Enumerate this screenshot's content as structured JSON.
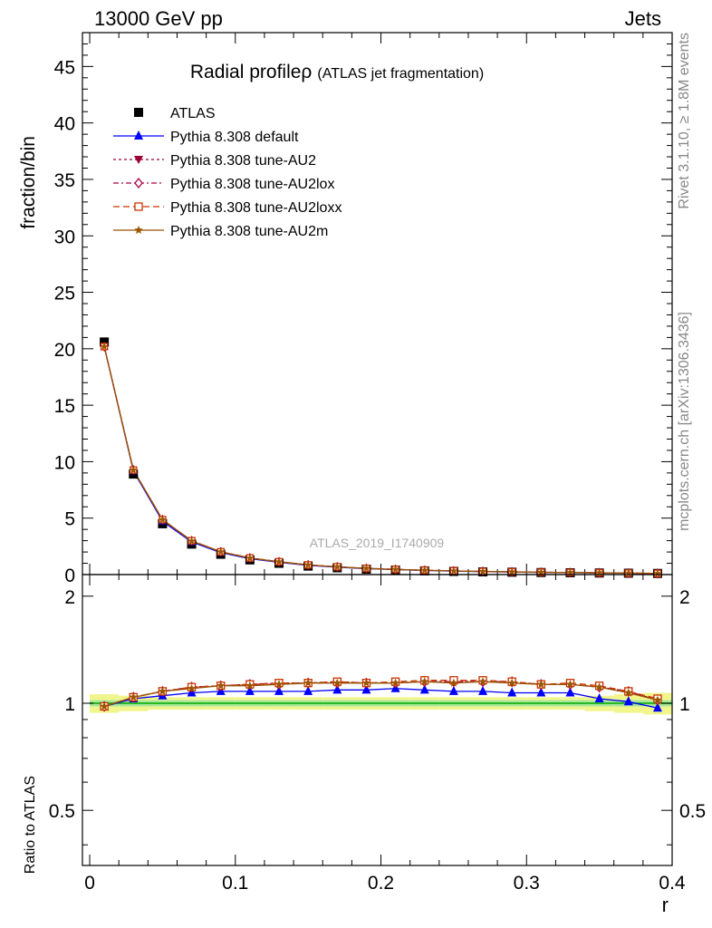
{
  "chart_data": {
    "type": "line",
    "header_left": "13000 GeV pp",
    "header_right": "Jets",
    "title_main": "Radial profile",
    "title_symbol": "ρ",
    "title_sub": "(ATLAS jet fragmentation)",
    "ylabel": "fraction/bin",
    "ratio_ylabel": "Ratio to ATLAS",
    "xlabel": "r",
    "watermark": "ATLAS_2019_I1740909",
    "side_text_1": "Rivet 3.1.10, ≥ 1.8M events",
    "side_text_2": "mcplots.cern.ch [arXiv:1306.3436]",
    "xlim": [
      -0.005,
      0.4
    ],
    "ylim": [
      0,
      48
    ],
    "ratio_ylim": [
      0.35,
      2.3
    ],
    "x_ticks": [
      "0",
      "0.1",
      "0.2",
      "0.3",
      "0.4"
    ],
    "y_ticks": [
      "0",
      "5",
      "10",
      "15",
      "20",
      "25",
      "30",
      "35",
      "40",
      "45"
    ],
    "ratio_y_ticks": [
      "0.5",
      "1",
      "2"
    ],
    "x": [
      0.01,
      0.03,
      0.05,
      0.07,
      0.09,
      0.11,
      0.13,
      0.15,
      0.17,
      0.19,
      0.21,
      0.23,
      0.25,
      0.27,
      0.29,
      0.31,
      0.33,
      0.35,
      0.37,
      0.39
    ],
    "data": {
      "name": "ATLAS",
      "values": [
        20.6,
        8.9,
        4.5,
        2.7,
        1.8,
        1.3,
        1.0,
        0.75,
        0.6,
        0.48,
        0.4,
        0.33,
        0.28,
        0.24,
        0.21,
        0.18,
        0.16,
        0.14,
        0.12,
        0.1
      ]
    },
    "series": [
      {
        "name": "Pythia 8.308 default",
        "color": "#0000ff",
        "marker": "triangle-up",
        "dash": "solid",
        "ratio": [
          0.98,
          1.03,
          1.05,
          1.07,
          1.08,
          1.08,
          1.08,
          1.08,
          1.09,
          1.09,
          1.1,
          1.09,
          1.08,
          1.08,
          1.07,
          1.07,
          1.07,
          1.03,
          1.01,
          0.97
        ]
      },
      {
        "name": "Pythia 8.308 tune-AU2",
        "color": "#990033",
        "marker": "triangle-down",
        "dash": "dotted",
        "ratio": [
          0.98,
          1.04,
          1.08,
          1.11,
          1.12,
          1.13,
          1.14,
          1.14,
          1.15,
          1.14,
          1.14,
          1.15,
          1.15,
          1.15,
          1.14,
          1.13,
          1.13,
          1.11,
          1.08,
          1.02
        ]
      },
      {
        "name": "Pythia 8.308 tune-AU2lox",
        "color": "#aa0044",
        "marker": "diamond-open",
        "dash": "dashdot",
        "ratio": [
          0.98,
          1.04,
          1.08,
          1.11,
          1.12,
          1.13,
          1.13,
          1.14,
          1.14,
          1.14,
          1.14,
          1.15,
          1.15,
          1.15,
          1.15,
          1.13,
          1.13,
          1.11,
          1.08,
          1.02
        ]
      },
      {
        "name": "Pythia 8.308 tune-AU2loxx",
        "color": "#cc3300",
        "marker": "square-open",
        "dash": "dashed",
        "ratio": [
          0.98,
          1.04,
          1.08,
          1.11,
          1.12,
          1.13,
          1.14,
          1.14,
          1.15,
          1.14,
          1.15,
          1.16,
          1.16,
          1.16,
          1.15,
          1.13,
          1.14,
          1.12,
          1.08,
          1.03
        ]
      },
      {
        "name": "Pythia 8.308 tune-AU2m",
        "color": "#995500",
        "marker": "star",
        "dash": "solid",
        "ratio": [
          0.98,
          1.04,
          1.08,
          1.1,
          1.12,
          1.12,
          1.13,
          1.14,
          1.14,
          1.14,
          1.14,
          1.15,
          1.14,
          1.15,
          1.14,
          1.13,
          1.13,
          1.11,
          1.07,
          1.02
        ]
      }
    ],
    "band_stat": [
      0.02,
      0.02,
      0.02,
      0.02,
      0.02,
      0.02,
      0.02,
      0.02,
      0.02,
      0.02,
      0.02,
      0.02,
      0.02,
      0.02,
      0.02,
      0.02,
      0.02,
      0.02,
      0.02,
      0.02
    ],
    "band_total": [
      0.06,
      0.05,
      0.04,
      0.04,
      0.04,
      0.04,
      0.04,
      0.04,
      0.04,
      0.04,
      0.04,
      0.04,
      0.04,
      0.04,
      0.04,
      0.04,
      0.04,
      0.05,
      0.06,
      0.07
    ]
  }
}
